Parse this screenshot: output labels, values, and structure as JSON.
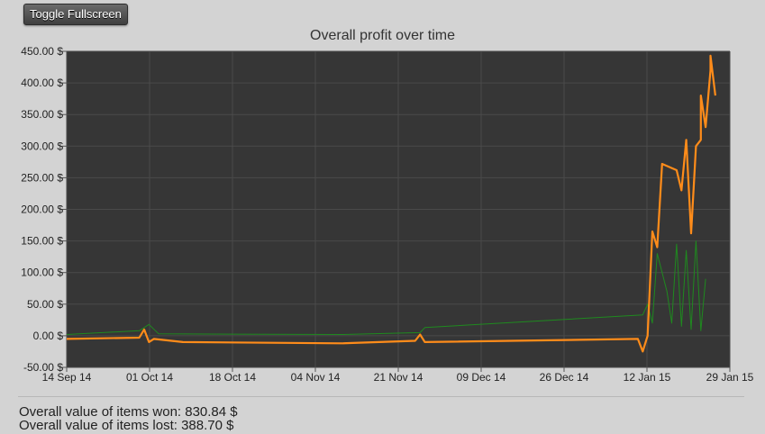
{
  "toggle_button": "Toggle Fullscreen",
  "colors": {
    "won": "#ff8c1a",
    "lost": "#1f8a1f",
    "plot_bg": "#363636",
    "grid": "#4a4a4a"
  },
  "stats": {
    "won": "Overall value of items won: 830.84 $",
    "lost": "Overall value of items lost: 388.70 $"
  },
  "chart_data": {
    "type": "line",
    "title": "Overall profit over time",
    "xlabel": "",
    "ylabel": "",
    "grid": true,
    "xlim": [
      "2014-09-14",
      "2015-01-29"
    ],
    "ylim": [
      -50,
      450
    ],
    "x_ticks": [
      "14 Sep 14",
      "01 Oct 14",
      "18 Oct 14",
      "04 Nov 14",
      "21 Nov 14",
      "09 Dec 14",
      "26 Dec 14",
      "12 Jan 15",
      "29 Jan 15"
    ],
    "y_ticks": [
      "-50.00 $",
      "0.00 $",
      "50.00 $",
      "100.00 $",
      "150.00 $",
      "200.00 $",
      "250.00 $",
      "300.00 $",
      "350.00 $",
      "400.00 $",
      "450.00 $"
    ],
    "series": [
      {
        "key": "won",
        "points": [
          [
            "2014-09-14",
            -5
          ],
          [
            "2014-09-29",
            -3
          ],
          [
            "2014-09-30",
            10
          ],
          [
            "2014-10-01",
            -10
          ],
          [
            "2014-10-02",
            -5
          ],
          [
            "2014-10-08",
            -10
          ],
          [
            "2014-11-10",
            -12
          ],
          [
            "2014-11-25",
            -8
          ],
          [
            "2014-11-26",
            2
          ],
          [
            "2014-11-27",
            -10
          ],
          [
            "2015-01-10",
            -5
          ],
          [
            "2015-01-11",
            -25
          ],
          [
            "2015-01-12",
            0
          ],
          [
            "2015-01-13",
            165
          ],
          [
            "2015-01-14",
            140
          ],
          [
            "2015-01-15",
            272
          ],
          [
            "2015-01-18",
            262
          ],
          [
            "2015-01-19",
            230
          ],
          [
            "2015-01-20",
            310
          ],
          [
            "2015-01-21",
            162
          ],
          [
            "2015-01-22",
            300
          ],
          [
            "2015-01-23",
            310
          ],
          [
            "2015-01-23",
            380
          ],
          [
            "2015-01-24",
            330
          ],
          [
            "2015-01-25",
            420
          ],
          [
            "2015-01-25",
            443
          ],
          [
            "2015-01-26",
            380
          ]
        ]
      },
      {
        "key": "lost",
        "points": [
          [
            "2014-09-14",
            2
          ],
          [
            "2014-09-29",
            8
          ],
          [
            "2014-10-01",
            18
          ],
          [
            "2014-10-03",
            3
          ],
          [
            "2014-11-10",
            2
          ],
          [
            "2014-11-26",
            5
          ],
          [
            "2014-11-27",
            13
          ],
          [
            "2015-01-11",
            33
          ],
          [
            "2015-01-12",
            50
          ],
          [
            "2015-01-13",
            20
          ],
          [
            "2015-01-14",
            130
          ],
          [
            "2015-01-16",
            70
          ],
          [
            "2015-01-17",
            20
          ],
          [
            "2015-01-18",
            145
          ],
          [
            "2015-01-19",
            15
          ],
          [
            "2015-01-20",
            135
          ],
          [
            "2015-01-21",
            10
          ],
          [
            "2015-01-22",
            150
          ],
          [
            "2015-01-23",
            8
          ],
          [
            "2015-01-24",
            90
          ]
        ]
      }
    ]
  }
}
